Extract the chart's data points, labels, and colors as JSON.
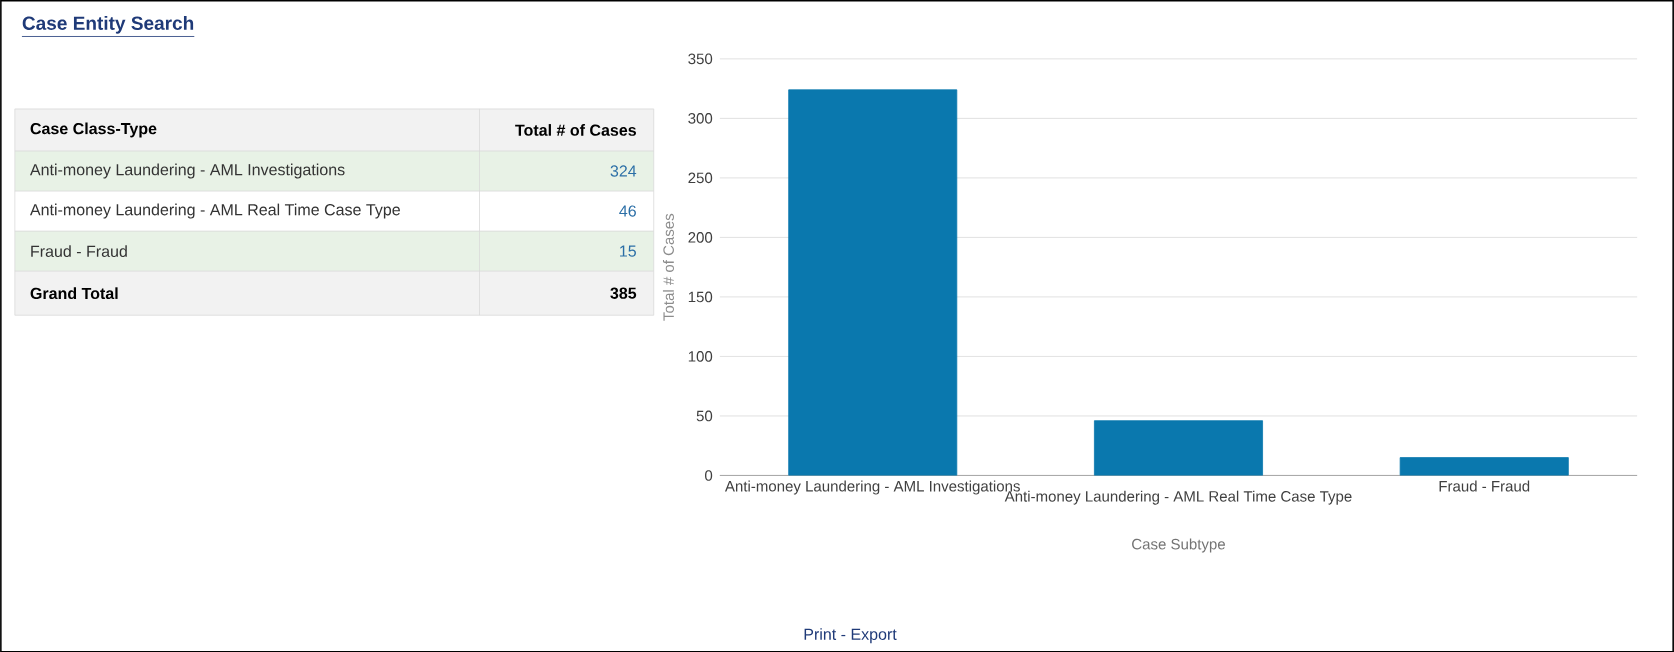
{
  "chart_data": [
    {
      "type": "other",
      "title": "Case Entity Search",
      "categories": [
        "Anti-money Laundering - AML Investigations",
        "Anti-money Laundering - AML Real Time Case Type",
        "Fraud - Fraud"
      ],
      "values": [
        324,
        46,
        15
      ],
      "data_labels": true,
      "annotations": [
        "Case Class-Type",
        "Total # of Cases",
        "Grand Total",
        "385"
      ]
    },
    {
      "type": "bar",
      "categories": [
        "Anti-money Laundering - AML Investigations",
        "Anti-money Laundering - AML Real Time Case Type",
        "Fraud - Fraud"
      ],
      "values": [
        324,
        46,
        15
      ],
      "color": "#0a78ae",
      "xlabel": "Case Subtype",
      "ylabel": "Total # of Cases",
      "ylim": [
        0,
        350
      ],
      "yticks": [
        0,
        50,
        100,
        150,
        200,
        250,
        300,
        350
      ],
      "grid": "y",
      "annotations": [
        "Print - Export"
      ]
    }
  ]
}
